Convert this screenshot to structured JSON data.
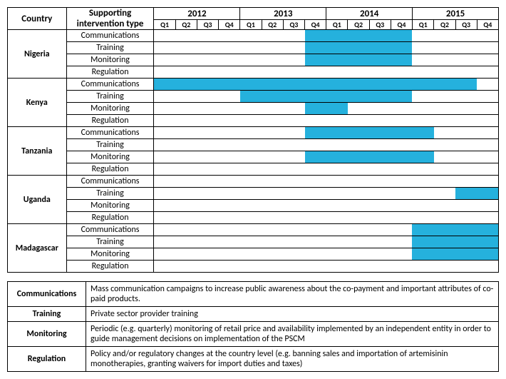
{
  "bar_color": "#25b1dd",
  "n_quarters": 16,
  "headers": {
    "country": "Country",
    "type": "Supporting intervention type",
    "years": [
      "2012",
      "2013",
      "2014",
      "2015"
    ],
    "quarters": [
      "Q1",
      "Q2",
      "Q3",
      "Q4",
      "Q1",
      "Q2",
      "Q3",
      "Q4",
      "Q1",
      "Q2",
      "Q3",
      "Q4",
      "Q1",
      "Q2",
      "Q3",
      "Q4"
    ]
  },
  "countries": [
    {
      "name": "Nigeria",
      "rows": [
        {
          "type": "Communications",
          "start": 8,
          "end": 12
        },
        {
          "type": "Training",
          "start": 8,
          "end": 12
        },
        {
          "type": "Monitoring",
          "start": 8,
          "end": 12
        },
        {
          "type": "Regulation",
          "start": null,
          "end": null
        }
      ]
    },
    {
      "name": "Kenya",
      "rows": [
        {
          "type": "Communications",
          "start": 1,
          "end": 15
        },
        {
          "type": "Training",
          "start": 5,
          "end": 12
        },
        {
          "type": "Monitoring",
          "start": 8,
          "end": 9
        },
        {
          "type": "Regulation",
          "start": null,
          "end": null
        }
      ]
    },
    {
      "name": "Tanzania",
      "rows": [
        {
          "type": "Communications",
          "start": 8,
          "end": 13
        },
        {
          "type": "Training",
          "start": null,
          "end": null
        },
        {
          "type": "Monitoring",
          "start": 8,
          "end": 13
        },
        {
          "type": "Regulation",
          "start": null,
          "end": null
        }
      ]
    },
    {
      "name": "Uganda",
      "rows": [
        {
          "type": "Communications",
          "start": null,
          "end": null
        },
        {
          "type": "Training",
          "start": 15,
          "end": 16
        },
        {
          "type": "Monitoring",
          "start": null,
          "end": null
        },
        {
          "type": "Regulation",
          "start": null,
          "end": null
        }
      ]
    },
    {
      "name": "Madagascar",
      "rows": [
        {
          "type": "Communications",
          "start": 13,
          "end": 16
        },
        {
          "type": "Training",
          "start": 13,
          "end": 16
        },
        {
          "type": "Monitoring",
          "start": 13,
          "end": 16
        },
        {
          "type": "Regulation",
          "start": null,
          "end": null
        }
      ]
    }
  ],
  "definitions": [
    {
      "label": "Communications",
      "text": "Mass communication campaigns to increase public awareness about the co-payment and important attributes of co-paid products."
    },
    {
      "label": "Training",
      "text": "Private sector provider training"
    },
    {
      "label": "Monitoring",
      "text": "Periodic (e.g. quarterly) monitoring of retail price and availability implemented by an independent entity in order to guide management decisions on implementation of the PSCM"
    },
    {
      "label": "Regulation",
      "text": "Policy and/or regulatory changes at the country level (e.g. banning sales and importation of artemisinin monotherapies, granting waivers for import duties and taxes)"
    }
  ]
}
